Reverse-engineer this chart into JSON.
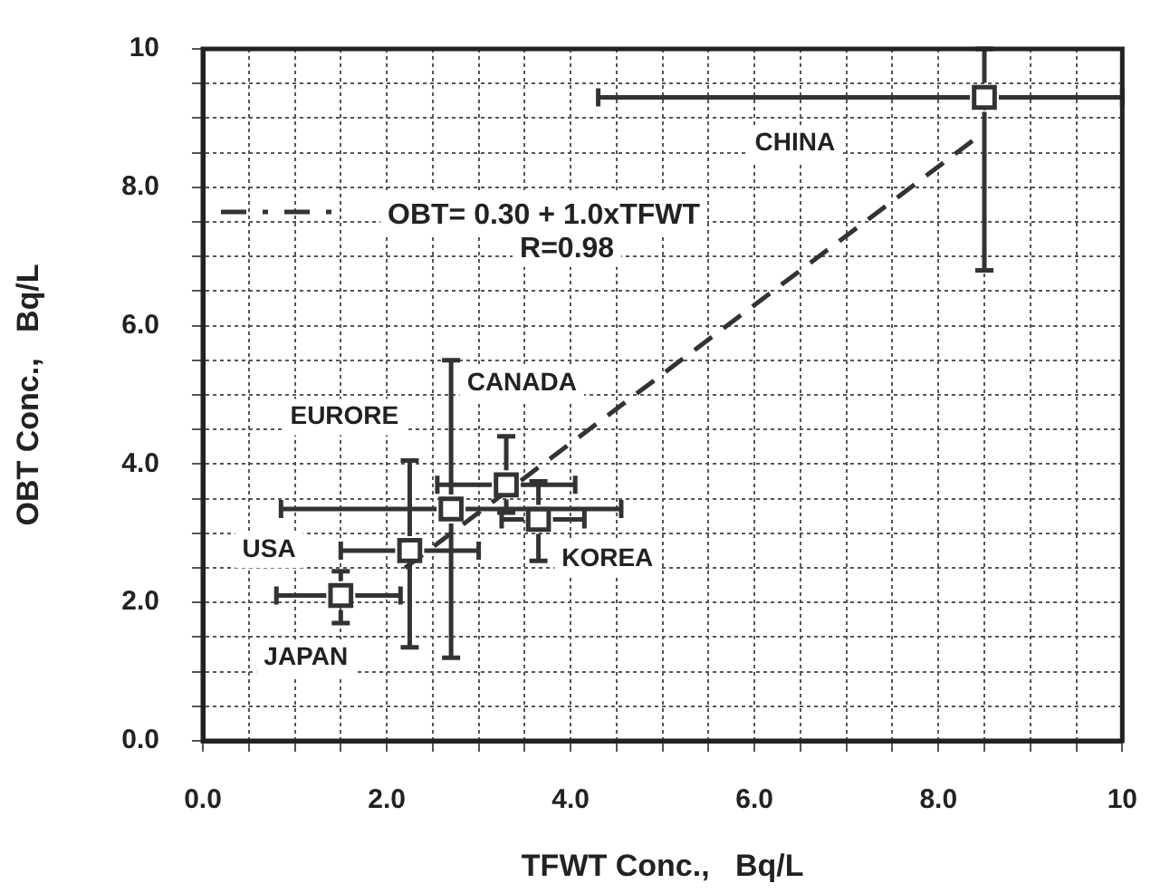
{
  "chart_data": {
    "type": "scatter",
    "xlabel": "TFWT Conc.,   Bq/L",
    "ylabel": "OBT Conc.,   Bq/L",
    "xlim": [
      0,
      10
    ],
    "ylim": [
      0,
      10
    ],
    "xticks": [
      {
        "value": 0,
        "label": "0.0"
      },
      {
        "value": 0.5,
        "label": null
      },
      {
        "value": 1,
        "label": null
      },
      {
        "value": 1.5,
        "label": null
      },
      {
        "value": 2,
        "label": "2.0"
      },
      {
        "value": 2.5,
        "label": null
      },
      {
        "value": 3,
        "label": null
      },
      {
        "value": 3.5,
        "label": null
      },
      {
        "value": 4,
        "label": "4.0"
      },
      {
        "value": 4.5,
        "label": null
      },
      {
        "value": 5,
        "label": null
      },
      {
        "value": 5.5,
        "label": null
      },
      {
        "value": 6,
        "label": "6.0"
      },
      {
        "value": 6.5,
        "label": null
      },
      {
        "value": 7,
        "label": null
      },
      {
        "value": 7.5,
        "label": null
      },
      {
        "value": 8,
        "label": "8.0"
      },
      {
        "value": 8.5,
        "label": null
      },
      {
        "value": 9,
        "label": null
      },
      {
        "value": 9.5,
        "label": null
      },
      10
    ],
    "yticks": [
      {
        "value": 0,
        "label": "0.0"
      },
      {
        "value": 0.5,
        "label": null
      },
      {
        "value": 1,
        "label": null
      },
      {
        "value": 1.5,
        "label": null
      },
      {
        "value": 2,
        "label": "2.0"
      },
      {
        "value": 2.5,
        "label": null
      },
      {
        "value": 3,
        "label": null
      },
      {
        "value": 3.5,
        "label": null
      },
      {
        "value": 4,
        "label": "4.0"
      },
      {
        "value": 4.5,
        "label": null
      },
      {
        "value": 5,
        "label": null
      },
      {
        "value": 5.5,
        "label": null
      },
      {
        "value": 6,
        "label": "6.0"
      },
      {
        "value": 6.5,
        "label": null
      },
      {
        "value": 7,
        "label": null
      },
      {
        "value": 7.5,
        "label": null
      },
      {
        "value": 8,
        "label": "8.0"
      },
      {
        "value": 8.5,
        "label": null
      },
      {
        "value": 9,
        "label": null
      },
      {
        "value": 9.5,
        "label": null
      },
      10
    ],
    "grid": true,
    "legend": "top left",
    "series": [
      {
        "color": "#333333",
        "marker": "square",
        "x": [
          1.5,
          2.25,
          2.7,
          3.3,
          3.65,
          8.5
        ],
        "values": [
          2.1,
          2.75,
          3.35,
          3.7,
          3.2,
          9.3
        ],
        "errors": [
          [
            1.7,
            2.45
          ],
          [
            1.35,
            4.05
          ],
          [
            1.2,
            5.5
          ],
          [
            3.3,
            4.4
          ],
          [
            2.6,
            3.75
          ],
          [
            6.8,
            10
          ]
        ],
        "xerrors": [
          [
            0.8,
            2.15
          ],
          [
            1.5,
            3.0
          ],
          [
            0.85,
            4.55
          ],
          [
            2.55,
            4.05
          ],
          [
            3.25,
            4.15
          ],
          [
            4.3,
            10
          ]
        ]
      },
      {
        "type": "line",
        "name": "OBT= 0.30 + 1.0xTFWT",
        "color": "#333333",
        "marker": "none",
        "line_style": "dashed",
        "x": [
          2.2,
          8.5
        ],
        "values": [
          2.5,
          8.8
        ]
      }
    ],
    "annotations": [
      "JAPAN",
      "USA",
      "EURORE",
      "CANADA",
      "KOREA",
      "CHINA",
      "R=0.98"
    ]
  }
}
